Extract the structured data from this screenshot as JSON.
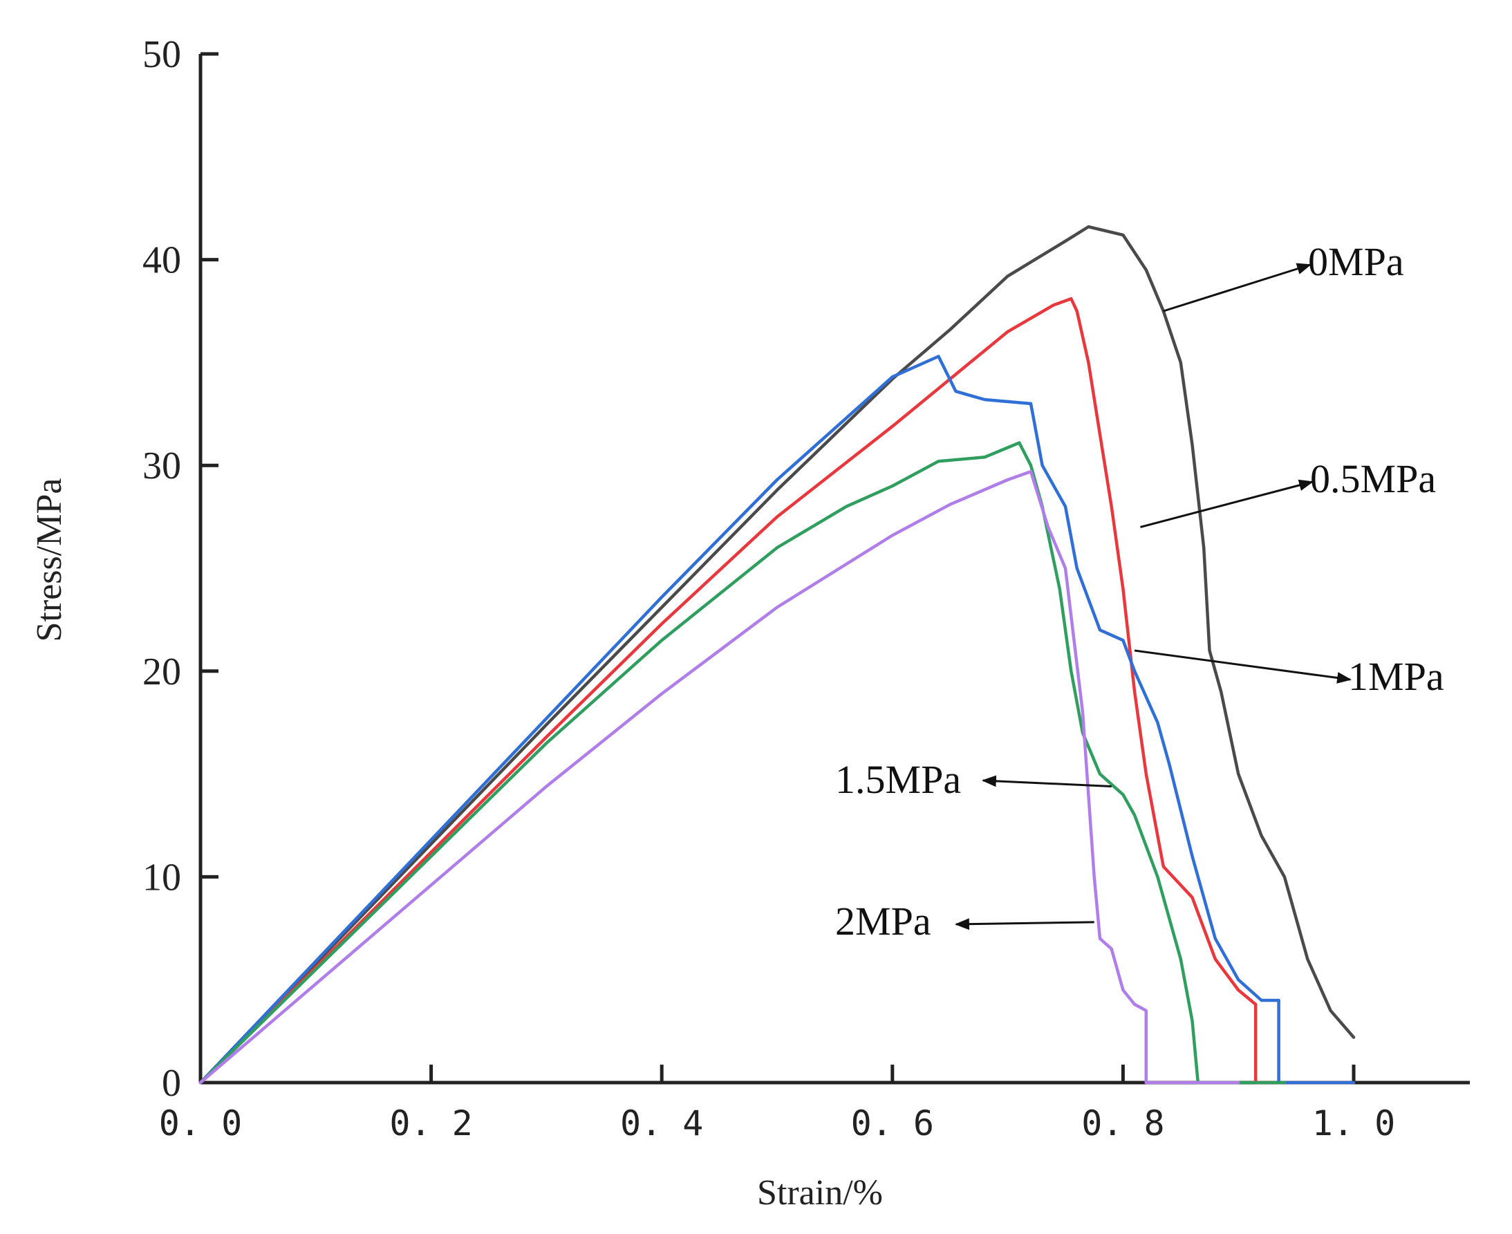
{
  "chart_data": {
    "type": "line",
    "title": "",
    "xlabel": "Strain/%",
    "ylabel": "Stress/MPa",
    "xlim": [
      0,
      1.1
    ],
    "ylim": [
      0,
      50
    ],
    "x_ticks": [
      0.0,
      0.2,
      0.4,
      0.6,
      0.8,
      1.0
    ],
    "x_tick_labels": [
      "0. 0",
      "0. 2",
      "0. 4",
      "0. 6",
      "0. 8",
      "1. 0"
    ],
    "y_ticks": [
      0,
      10,
      20,
      30,
      40,
      50
    ],
    "y_tick_labels": [
      "0",
      "10",
      "20",
      "30",
      "40",
      "50"
    ],
    "grid": false,
    "series": [
      {
        "name": "0MPa",
        "color": "#4a4a4a",
        "points": [
          [
            0,
            0
          ],
          [
            0.1,
            5.8
          ],
          [
            0.2,
            11.6
          ],
          [
            0.3,
            17.4
          ],
          [
            0.4,
            23.1
          ],
          [
            0.5,
            28.8
          ],
          [
            0.6,
            34.2
          ],
          [
            0.65,
            36.6
          ],
          [
            0.7,
            39.2
          ],
          [
            0.75,
            40.9
          ],
          [
            0.77,
            41.6
          ],
          [
            0.8,
            41.2
          ],
          [
            0.82,
            39.5
          ],
          [
            0.835,
            37.5
          ],
          [
            0.85,
            35
          ],
          [
            0.86,
            31
          ],
          [
            0.87,
            26
          ],
          [
            0.875,
            21
          ],
          [
            0.885,
            19
          ],
          [
            0.9,
            15
          ],
          [
            0.92,
            12
          ],
          [
            0.94,
            10
          ],
          [
            0.96,
            6
          ],
          [
            0.98,
            3.5
          ],
          [
            1.0,
            2.2
          ]
        ]
      },
      {
        "name": "0.5MPa",
        "color": "#e8383d",
        "points": [
          [
            0,
            0
          ],
          [
            0.1,
            5.6
          ],
          [
            0.2,
            11.2
          ],
          [
            0.3,
            16.8
          ],
          [
            0.4,
            22.3
          ],
          [
            0.5,
            27.5
          ],
          [
            0.6,
            31.9
          ],
          [
            0.65,
            34.2
          ],
          [
            0.7,
            36.5
          ],
          [
            0.74,
            37.8
          ],
          [
            0.755,
            38.1
          ],
          [
            0.76,
            37.5
          ],
          [
            0.77,
            35
          ],
          [
            0.78,
            31.5
          ],
          [
            0.79,
            28
          ],
          [
            0.8,
            24
          ],
          [
            0.81,
            19
          ],
          [
            0.82,
            15
          ],
          [
            0.83,
            12
          ],
          [
            0.835,
            10.5
          ],
          [
            0.86,
            9
          ],
          [
            0.88,
            6
          ],
          [
            0.9,
            4.5
          ],
          [
            0.915,
            3.8
          ],
          [
            0.915,
            0
          ],
          [
            1.0,
            0
          ]
        ]
      },
      {
        "name": "1MPa",
        "color": "#2f6fd6",
        "points": [
          [
            0,
            0
          ],
          [
            0.1,
            5.9
          ],
          [
            0.2,
            11.8
          ],
          [
            0.3,
            17.7
          ],
          [
            0.4,
            23.6
          ],
          [
            0.5,
            29.3
          ],
          [
            0.6,
            34.3
          ],
          [
            0.64,
            35.3
          ],
          [
            0.655,
            33.6
          ],
          [
            0.68,
            33.2
          ],
          [
            0.72,
            33
          ],
          [
            0.73,
            30
          ],
          [
            0.75,
            28
          ],
          [
            0.76,
            25
          ],
          [
            0.78,
            22
          ],
          [
            0.8,
            21.5
          ],
          [
            0.81,
            20
          ],
          [
            0.83,
            17.5
          ],
          [
            0.84,
            15.5
          ],
          [
            0.86,
            11
          ],
          [
            0.88,
            7
          ],
          [
            0.9,
            5
          ],
          [
            0.92,
            4
          ],
          [
            0.935,
            4
          ],
          [
            0.935,
            0
          ],
          [
            1.0,
            0
          ]
        ]
      },
      {
        "name": "1.5MPa",
        "color": "#2f9e5e",
        "points": [
          [
            0,
            0
          ],
          [
            0.1,
            5.5
          ],
          [
            0.2,
            11
          ],
          [
            0.3,
            16.5
          ],
          [
            0.4,
            21.5
          ],
          [
            0.5,
            26
          ],
          [
            0.56,
            28
          ],
          [
            0.6,
            29
          ],
          [
            0.64,
            30.2
          ],
          [
            0.68,
            30.4
          ],
          [
            0.71,
            31.1
          ],
          [
            0.72,
            30
          ],
          [
            0.73,
            28
          ],
          [
            0.745,
            24
          ],
          [
            0.755,
            20
          ],
          [
            0.765,
            17
          ],
          [
            0.78,
            15
          ],
          [
            0.8,
            14
          ],
          [
            0.81,
            13
          ],
          [
            0.83,
            10
          ],
          [
            0.85,
            6
          ],
          [
            0.86,
            3
          ],
          [
            0.865,
            0
          ],
          [
            0.94,
            0
          ]
        ]
      },
      {
        "name": "2MPa",
        "color": "#b07ee8",
        "points": [
          [
            0,
            0
          ],
          [
            0.1,
            4.8
          ],
          [
            0.2,
            9.6
          ],
          [
            0.3,
            14.4
          ],
          [
            0.4,
            18.9
          ],
          [
            0.5,
            23.1
          ],
          [
            0.6,
            26.6
          ],
          [
            0.65,
            28.1
          ],
          [
            0.7,
            29.3
          ],
          [
            0.72,
            29.7
          ],
          [
            0.735,
            27
          ],
          [
            0.75,
            25
          ],
          [
            0.765,
            18
          ],
          [
            0.775,
            10
          ],
          [
            0.78,
            7
          ],
          [
            0.79,
            6.5
          ],
          [
            0.8,
            4.5
          ],
          [
            0.81,
            3.8
          ],
          [
            0.82,
            3.5
          ],
          [
            0.82,
            0
          ],
          [
            0.9,
            0
          ]
        ]
      }
    ],
    "annotations": [
      {
        "text": "0MPa",
        "series": "0MPa",
        "at": [
          0.835,
          37.5
        ]
      },
      {
        "text": "0.5MPa",
        "series": "0.5MPa",
        "at": [
          0.815,
          27
        ]
      },
      {
        "text": "1MPa",
        "series": "1MPa",
        "at": [
          0.81,
          21
        ]
      },
      {
        "text": "1.5MPa",
        "series": "1.5MPa",
        "at": [
          0.79,
          14.4
        ]
      },
      {
        "text": "2MPa",
        "series": "2MPa",
        "at": [
          0.775,
          7.8
        ]
      }
    ]
  }
}
